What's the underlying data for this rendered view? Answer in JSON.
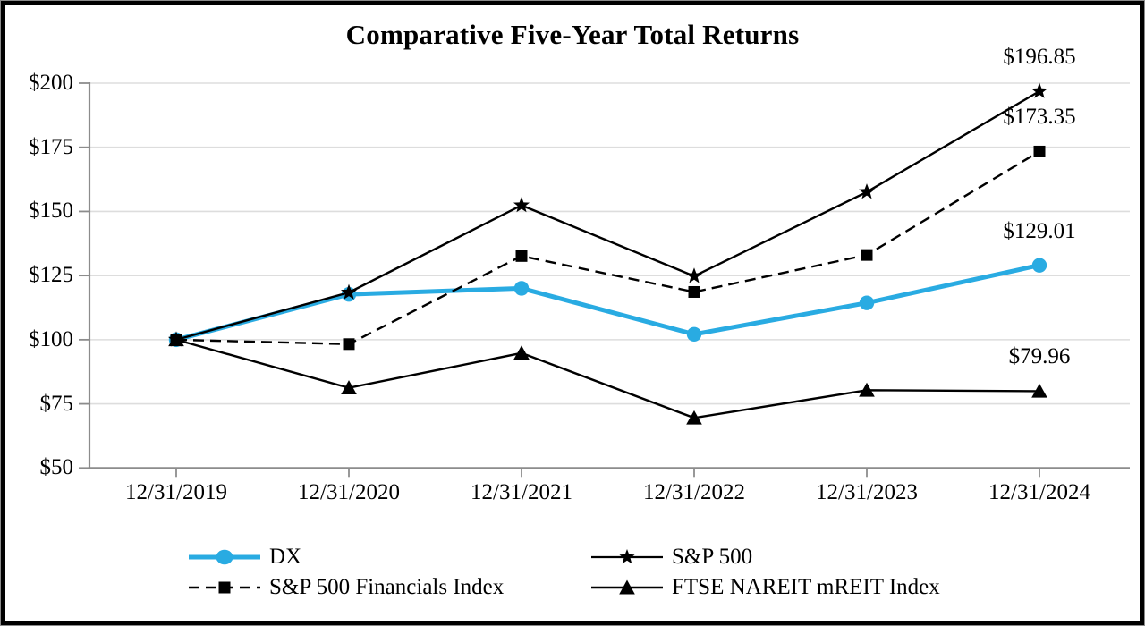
{
  "chart_data": {
    "type": "line",
    "title": "Comparative Five-Year Total Returns",
    "categories": [
      "12/31/2019",
      "12/31/2020",
      "12/31/2021",
      "12/31/2022",
      "12/31/2023",
      "12/31/2024"
    ],
    "y_axis": {
      "min": 50,
      "max": 200,
      "tick_step": 25,
      "ticks": [
        {
          "label": "$200",
          "value": 200
        },
        {
          "label": "$175",
          "value": 175
        },
        {
          "label": "$150",
          "value": 150
        },
        {
          "label": "$125",
          "value": 125
        },
        {
          "label": "$100",
          "value": 100
        },
        {
          "label": "$75",
          "value": 75
        },
        {
          "label": "$50",
          "value": 50
        }
      ]
    },
    "grid": "horizontal-only",
    "legend_position": "bottom",
    "series": [
      {
        "id": "dx",
        "name": "DX",
        "color": "#29ABE2",
        "marker": "circle",
        "line": "solid",
        "line_width": 5,
        "values": [
          100.0,
          117.68,
          120.02,
          102.12,
          114.34,
          129.01
        ],
        "end_label": "$129.01"
      },
      {
        "id": "sp500",
        "name": "S&P 500",
        "color": "#000000",
        "marker": "star",
        "line": "solid",
        "line_width": 2.4,
        "values": [
          100.0,
          118.4,
          152.39,
          124.79,
          157.59,
          196.85
        ],
        "end_label": "$196.85"
      },
      {
        "id": "mreit",
        "name": "FTSE NAREIT mREIT Index",
        "color": "#000000",
        "marker": "triangle",
        "line": "solid",
        "line_width": 2.4,
        "values": [
          100.0,
          81.25,
          94.81,
          69.51,
          80.33,
          79.96
        ],
        "end_label": "$79.96"
      },
      {
        "id": "financials",
        "name": "S&P 500 Financials Index",
        "color": "#000000",
        "marker": "square",
        "line": "dashed",
        "line_width": 2.4,
        "values": [
          100.0,
          98.28,
          132.61,
          118.61,
          133.02,
          173.35
        ],
        "end_label": "$173.35"
      }
    ],
    "colors": {
      "grid": "#DDDDDD",
      "axis": "#8C8C8C",
      "text": "#000000",
      "dx_blue": "#29ABE2"
    }
  }
}
